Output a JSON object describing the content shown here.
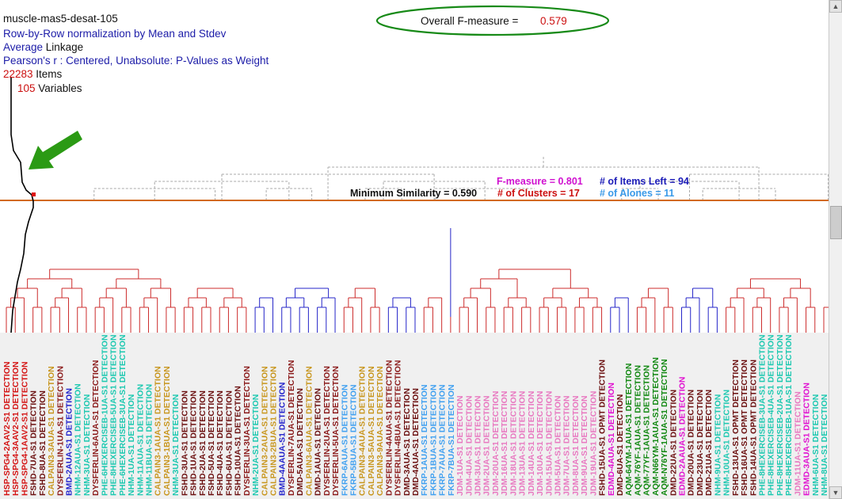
{
  "dataset_name": "muscle-mas5-desat-105",
  "normalization": {
    "prefix": "Row-by-Row normalization by ",
    "method": "Mean and Stdev"
  },
  "linkage": {
    "method": "Average",
    "suffix": " Linkage"
  },
  "distance": "Pearson's r : Centered, Unabsolute: P-Values as Weight",
  "items": {
    "count": "22283",
    "label": " Items"
  },
  "variables": {
    "count": "105",
    "label": " Variables"
  },
  "overall_f": {
    "label": "Overall F-measure = ",
    "value": "0.579"
  },
  "stats": {
    "f_measure": "F-measure = 0.801",
    "items_left": "# of Items Left = 94",
    "min_similarity": "Minimum Similarity = 0.590",
    "clusters": "# of Clusters = 17",
    "alones": "# of Alones = 11"
  },
  "colors": {
    "HSP": "#d41414",
    "FSHD": "#6b0f0f",
    "CALPAIN": "#c8961e",
    "BMD": "#2222cc",
    "DYSFERLIN": "#8b1a1a",
    "NHM": "#1cc8b0",
    "PHE": "#1cc8b0",
    "DMD": "#6b0f0f",
    "FKRP": "#40a0f0",
    "JDM": "#e878c0",
    "EDMD": "#e010d0",
    "AQM": "#118811",
    "cluster_red": "#cc2b2b",
    "cluster_blue": "#2424c8",
    "cut_line": "#d2691e",
    "ellipse": "#178a17",
    "arrow": "#2b9a14"
  },
  "chart_data": {
    "type": "dendrogram",
    "labels": [
      {
        "text": "HSP-SPG4-2AAV2-S1 DETECTION",
        "color": "#d41414"
      },
      {
        "text": "HSP-SPG4-3AAV2-S1 DETECTION",
        "color": "#d41414"
      },
      {
        "text": "HSP-SPG4-1AAV2-S1 DETECTION",
        "color": "#d41414"
      },
      {
        "text": "FSHD-7UA-S1 DETECTION",
        "color": "#6b0f0f"
      },
      {
        "text": "FSHD-8UA-S1 DETECTION",
        "color": "#6b0f0f"
      },
      {
        "text": "CALPAIN3-3AUA-S1 DETECTION",
        "color": "#c8961e"
      },
      {
        "text": "DYSFERLIN-1UA-S1 DETECTION",
        "color": "#8b1a1a"
      },
      {
        "text": "BMD-2AUA-S1 DETECTION",
        "color": "#2222cc"
      },
      {
        "text": "NHM-12AUA-S1 DETECTION",
        "color": "#1cc8b0"
      },
      {
        "text": "NHM-3UA-S1 DETECTION",
        "color": "#1cc8b0"
      },
      {
        "text": "DYSFERLIN-6AUA-S1 DETECTION",
        "color": "#8b1a1a"
      },
      {
        "text": "PHE-6HEXERCISEB-1UA-S1 DETECTION",
        "color": "#1cc8b0"
      },
      {
        "text": "PHE-8HEXERCISEB-5UA-S1 DETECTION",
        "color": "#1cc8b0"
      },
      {
        "text": "PHE-6HEXERCISEB-3UA-S1 DETECTION",
        "color": "#1cc8b0"
      },
      {
        "text": "NHM-1UA-S1 DETECTION",
        "color": "#1cc8b0"
      },
      {
        "text": "NHM-11AUA-S1 DETECTION",
        "color": "#1cc8b0"
      },
      {
        "text": "NHM-11BUA-S1 DETECTION",
        "color": "#1cc8b0"
      },
      {
        "text": "CALPAIN3-1AUA-S1 DETECTION",
        "color": "#c8961e"
      },
      {
        "text": "CALPAIN3-1BUA-S1 DETECTION",
        "color": "#c8961e"
      },
      {
        "text": "NHM-3UA-S1 DETECTION",
        "color": "#1cc8b0"
      },
      {
        "text": "FSHD-3UA-S1 DETECTION",
        "color": "#6b0f0f"
      },
      {
        "text": "FSHD-1UA-S1 DETECTION",
        "color": "#6b0f0f"
      },
      {
        "text": "FSHD-2UA-S1 DETECTION",
        "color": "#6b0f0f"
      },
      {
        "text": "FSHD-5UA-S1 DETECTION",
        "color": "#6b0f0f"
      },
      {
        "text": "FSHD-4UA-S1 DETECTION",
        "color": "#6b0f0f"
      },
      {
        "text": "FSHD-6UA-S1 DETECTION",
        "color": "#6b0f0f"
      },
      {
        "text": "FSHD-10UA-S1 DETECTION",
        "color": "#6b0f0f"
      },
      {
        "text": "DYSFERLIN-3UA-S1 DETECTION",
        "color": "#8b1a1a"
      },
      {
        "text": "NHM-2UA-S1 DETECTION",
        "color": "#1cc8b0"
      },
      {
        "text": "CALPAIN3-2AUA-S1 DETECTION",
        "color": "#c8961e"
      },
      {
        "text": "CALPAIN3-2BUA-S1 DETECTION",
        "color": "#c8961e"
      },
      {
        "text": "BMD-4AAUA-S1 DETECTION",
        "color": "#2222cc"
      },
      {
        "text": "DYSFERLIN-7AUA-S1 DETECTION",
        "color": "#8b1a1a"
      },
      {
        "text": "DMD-5AUA-S1 DETECTION",
        "color": "#6b0f0f"
      },
      {
        "text": "CALPAIN3-6AUA-S1 DETECTION",
        "color": "#c8961e"
      },
      {
        "text": "DMD-1AUA-S1 DETECTION",
        "color": "#6b0f0f"
      },
      {
        "text": "DYSFERLIN-2UA-S1 DETECTION",
        "color": "#8b1a1a"
      },
      {
        "text": "DYSFERLIN-5UA-S1 DETECTION",
        "color": "#8b1a1a"
      },
      {
        "text": "FKRP-6AUA-S1 DETECTION",
        "color": "#40a0f0"
      },
      {
        "text": "FKRP-5BUA-S1 DETECTION",
        "color": "#40a0f0"
      },
      {
        "text": "CALPAIN3-4AUA-S1 DETECTION",
        "color": "#c8961e"
      },
      {
        "text": "CALPAIN3-5AUA-S1 DETECTION",
        "color": "#c8961e"
      },
      {
        "text": "CALPAIN3-9AUA-S1 DETECTION",
        "color": "#c8961e"
      },
      {
        "text": "DYSFERLIN-4AUA-S1 DETECTION",
        "color": "#8b1a1a"
      },
      {
        "text": "DYSFERLIN-4BUA-S1 DETECTION",
        "color": "#8b1a1a"
      },
      {
        "text": "DMD-3AUA-S1 DETECTION",
        "color": "#6b0f0f"
      },
      {
        "text": "DMD-4AUA-S1 DETECTION",
        "color": "#6b0f0f"
      },
      {
        "text": "FKRP-1AUA-S1 DETECTION",
        "color": "#40a0f0"
      },
      {
        "text": "FKRP-1BUA-S1 DETECTION",
        "color": "#40a0f0"
      },
      {
        "text": "FKRP-7AUA-S1 DETECTION",
        "color": "#40a0f0"
      },
      {
        "text": "FKRP-7BUA-S1 DETECTION",
        "color": "#40a0f0"
      },
      {
        "text": "JDM-1UA-S1 DETECTION",
        "color": "#e878c0"
      },
      {
        "text": "JDM-4UA-S1 DETECTION",
        "color": "#e878c0"
      },
      {
        "text": "JDM-3UA-S1 DETECTION",
        "color": "#e878c0"
      },
      {
        "text": "JDM-2UA-S1 DETECTION",
        "color": "#e878c0"
      },
      {
        "text": "JDM-20UA-S1 DETECTION",
        "color": "#e878c0"
      },
      {
        "text": "JDM-16UA-S1 DETECTION",
        "color": "#e878c0"
      },
      {
        "text": "JDM-18UA-S1 DETECTION",
        "color": "#e878c0"
      },
      {
        "text": "JDM-13UA-S1 DETECTION",
        "color": "#e878c0"
      },
      {
        "text": "JDM-14UA-S1 DETECTION",
        "color": "#e878c0"
      },
      {
        "text": "JDM-10UA-S1 DETECTION",
        "color": "#e878c0"
      },
      {
        "text": "JDM-15UA-S1 DETECTION",
        "color": "#e878c0"
      },
      {
        "text": "JDM-5UA-S1 DETECTION",
        "color": "#e878c0"
      },
      {
        "text": "JDM-7UA-S1 DETECTION",
        "color": "#e878c0"
      },
      {
        "text": "JDM-8UA-S1 DETECTION",
        "color": "#e878c0"
      },
      {
        "text": "JDM-9UA-S1 DETECTION",
        "color": "#e878c0"
      },
      {
        "text": "JDM-19UA-S1 DETECTION",
        "color": "#e878c0"
      },
      {
        "text": "FSHD-15UA-S1 OPMT DETECTION",
        "color": "#6b0f0f"
      },
      {
        "text": "EDMD-4AUA-S1 DETECTION",
        "color": "#e010d0"
      },
      {
        "text": "DMD-6UA-S1 DETECTION",
        "color": "#6b0f0f"
      },
      {
        "text": "AQM-64YM-1AUA-S1 DETECTION",
        "color": "#118811"
      },
      {
        "text": "AQM-76YF-1AUA-S1 DETECTION",
        "color": "#118811"
      },
      {
        "text": "AQM-77YF-1AUA-S1 DETECTION",
        "color": "#118811"
      },
      {
        "text": "AQM-N66YM-1AUA-S1 DETECTION",
        "color": "#118811"
      },
      {
        "text": "AQM-N76YF-1AUA-S1 DETECTION",
        "color": "#118811"
      },
      {
        "text": "DMD-22UA-S1 DETECTION",
        "color": "#6b0f0f"
      },
      {
        "text": "EDMD-2AAUA-S1 DETECTION",
        "color": "#e010d0"
      },
      {
        "text": "DMD-20UA-S1 DETECTION",
        "color": "#6b0f0f"
      },
      {
        "text": "DMD-23UA-S1 DETECTION",
        "color": "#6b0f0f"
      },
      {
        "text": "DMD-21UA-S1 DETECTION",
        "color": "#6b0f0f"
      },
      {
        "text": "NHM-9UA-S1 DETECTION",
        "color": "#1cc8b0"
      },
      {
        "text": "NHM-10UA-S1 DETECTION",
        "color": "#1cc8b0"
      },
      {
        "text": "FSHD-13UA-S1 OPMT DETECTION",
        "color": "#6b0f0f"
      },
      {
        "text": "FSHD-16UA-S1 OPMT DETECTION",
        "color": "#6b0f0f"
      },
      {
        "text": "FSHD-14UA-S1 OPMT DETECTION",
        "color": "#6b0f0f"
      },
      {
        "text": "PHE-8HEXERCISEB-3UA-S1 DETECTION",
        "color": "#1cc8b0"
      },
      {
        "text": "PHE-8HEXERCISEB-4UA-S1 DETECTION",
        "color": "#1cc8b0"
      },
      {
        "text": "PHE-8HEXERCISEB-2UA-S1 DETECTION",
        "color": "#1cc8b0"
      },
      {
        "text": "PHE-8HEXERCISEB-1UA-S1 DETECTION",
        "color": "#1cc8b0"
      },
      {
        "text": "JDM-11UA-S1 DETECTION",
        "color": "#e878c0"
      },
      {
        "text": "EDMD-3AUA-S1 DETECTION",
        "color": "#e010d0"
      },
      {
        "text": "NHM-6UA-S1 DETECTION",
        "color": "#1cc8b0"
      },
      {
        "text": "NHM-8UA-S1 DETECTION",
        "color": "#1cc8b0"
      }
    ]
  }
}
